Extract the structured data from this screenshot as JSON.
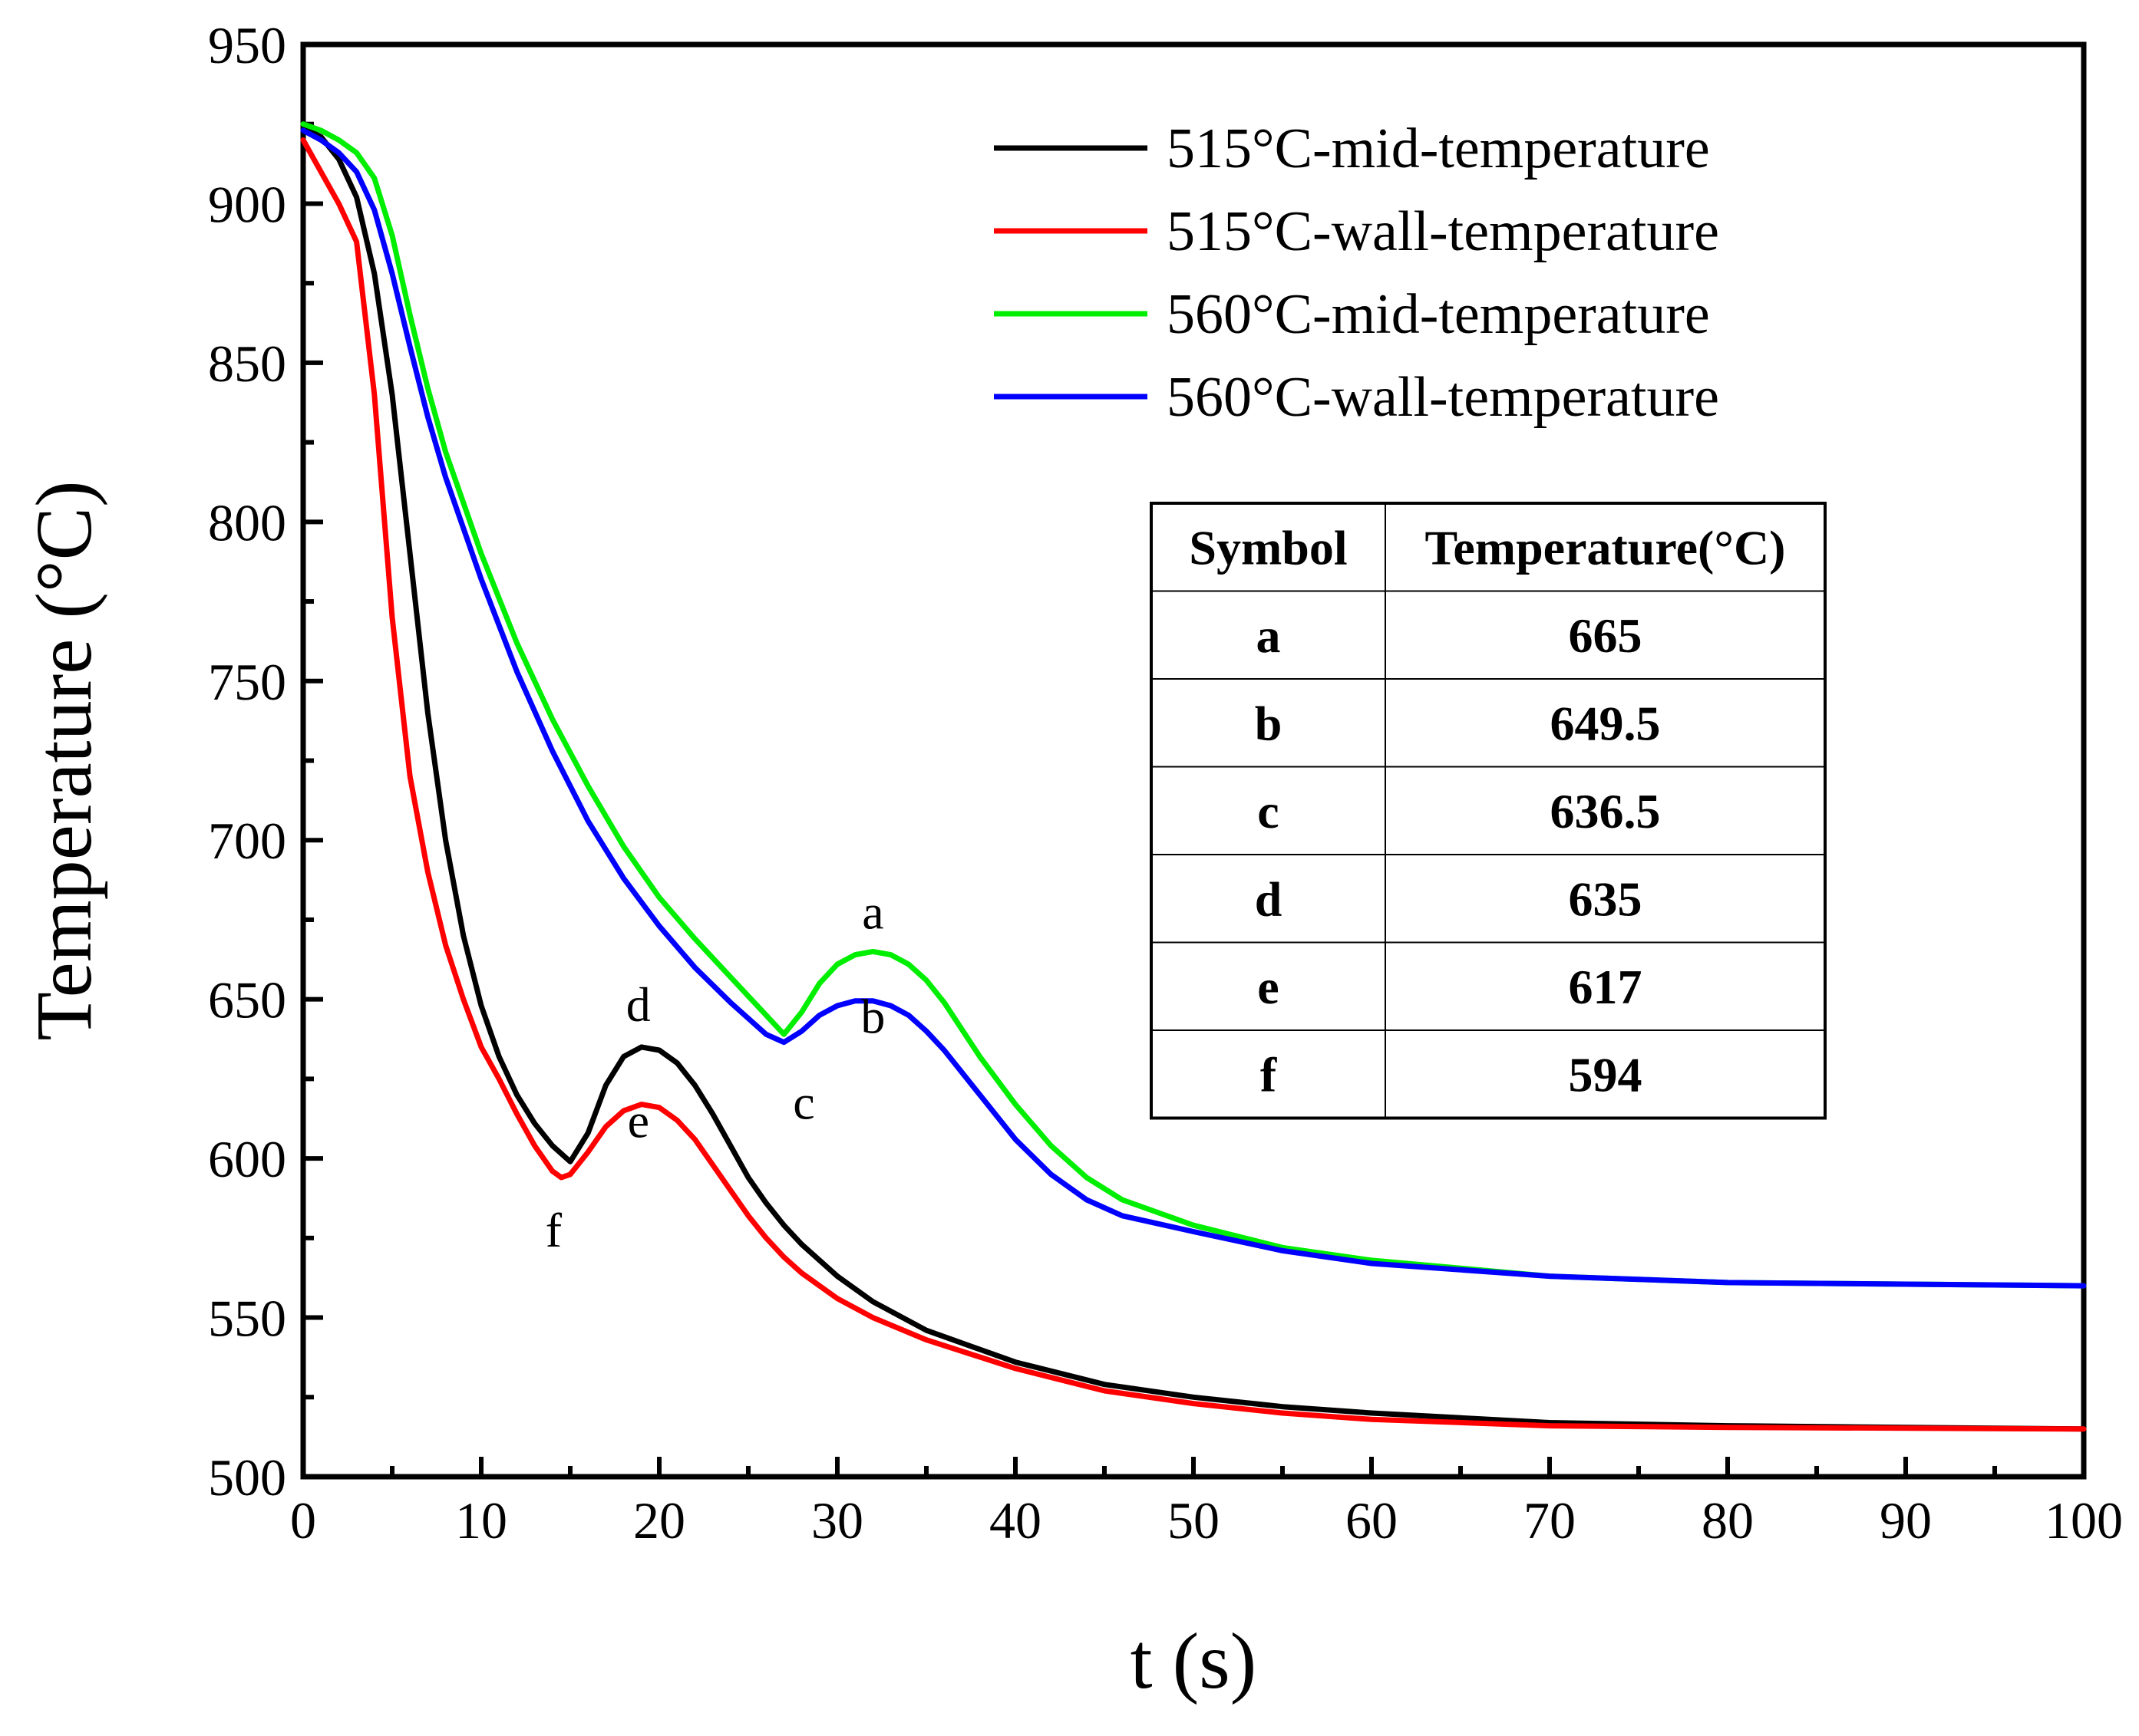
{
  "chart_data": {
    "type": "line",
    "xlabel": "t (s)",
    "ylabel": "Temperature (°C)",
    "xlim": [
      0,
      100
    ],
    "ylim": [
      500,
      950
    ],
    "xticks": [
      "0",
      "10",
      "20",
      "30",
      "40",
      "50",
      "60",
      "70",
      "80",
      "90",
      "100"
    ],
    "yticks": [
      "500",
      "550",
      "600",
      "650",
      "700",
      "750",
      "800",
      "850",
      "900",
      "950"
    ],
    "grid": false,
    "legend_position": "top-right",
    "series": [
      {
        "name": "515°C-mid-temperature",
        "color": "#000000",
        "points": [
          [
            0,
            924
          ],
          [
            1,
            921
          ],
          [
            2,
            914
          ],
          [
            3,
            902
          ],
          [
            4,
            878
          ],
          [
            5,
            840
          ],
          [
            6,
            790
          ],
          [
            7,
            740
          ],
          [
            8,
            700
          ],
          [
            9,
            670
          ],
          [
            10,
            648
          ],
          [
            11,
            632
          ],
          [
            12,
            620
          ],
          [
            13,
            611
          ],
          [
            14,
            604
          ],
          [
            15,
            599
          ],
          [
            16,
            608
          ],
          [
            17,
            623
          ],
          [
            18,
            632
          ],
          [
            19,
            635
          ],
          [
            20,
            634
          ],
          [
            21,
            630
          ],
          [
            22,
            623
          ],
          [
            23,
            614
          ],
          [
            24,
            604
          ],
          [
            25,
            594
          ],
          [
            26,
            586
          ],
          [
            27,
            579
          ],
          [
            28,
            573
          ],
          [
            29,
            568
          ],
          [
            30,
            563
          ],
          [
            32,
            555
          ],
          [
            35,
            546
          ],
          [
            40,
            536
          ],
          [
            45,
            529
          ],
          [
            50,
            525
          ],
          [
            55,
            522
          ],
          [
            60,
            520
          ],
          [
            70,
            517
          ],
          [
            80,
            516
          ],
          [
            90,
            515.5
          ],
          [
            100,
            515
          ]
        ]
      },
      {
        "name": "515°C-wall-temperature",
        "color": "#ff0000",
        "points": [
          [
            0,
            920
          ],
          [
            1,
            910
          ],
          [
            2,
            900
          ],
          [
            3,
            888
          ],
          [
            4,
            840
          ],
          [
            5,
            770
          ],
          [
            6,
            720
          ],
          [
            7,
            690
          ],
          [
            8,
            667
          ],
          [
            9,
            650
          ],
          [
            10,
            635
          ],
          [
            11,
            625
          ],
          [
            12,
            614
          ],
          [
            13,
            604
          ],
          [
            14,
            596
          ],
          [
            14.5,
            594
          ],
          [
            15,
            595
          ],
          [
            16,
            602
          ],
          [
            17,
            610
          ],
          [
            18,
            615
          ],
          [
            19,
            617
          ],
          [
            20,
            616
          ],
          [
            21,
            612
          ],
          [
            22,
            606
          ],
          [
            23,
            598
          ],
          [
            24,
            590
          ],
          [
            25,
            582
          ],
          [
            26,
            575
          ],
          [
            27,
            569
          ],
          [
            28,
            564
          ],
          [
            29,
            560
          ],
          [
            30,
            556
          ],
          [
            32,
            550
          ],
          [
            35,
            543
          ],
          [
            40,
            534
          ],
          [
            45,
            527
          ],
          [
            50,
            523
          ],
          [
            55,
            520
          ],
          [
            60,
            518
          ],
          [
            70,
            516
          ],
          [
            80,
            515.5
          ],
          [
            100,
            515
          ]
        ]
      },
      {
        "name": "560°C-mid-temperature",
        "color": "#00ee00",
        "points": [
          [
            0,
            925
          ],
          [
            1,
            923
          ],
          [
            2,
            920
          ],
          [
            3,
            916
          ],
          [
            4,
            908
          ],
          [
            5,
            890
          ],
          [
            6,
            865
          ],
          [
            7,
            842
          ],
          [
            8,
            822
          ],
          [
            10,
            790
          ],
          [
            12,
            762
          ],
          [
            14,
            738
          ],
          [
            16,
            717
          ],
          [
            18,
            698
          ],
          [
            20,
            682
          ],
          [
            22,
            669
          ],
          [
            24,
            657
          ],
          [
            26,
            645
          ],
          [
            27,
            639
          ],
          [
            28,
            646
          ],
          [
            29,
            655
          ],
          [
            30,
            661
          ],
          [
            31,
            664
          ],
          [
            32,
            665
          ],
          [
            33,
            664
          ],
          [
            34,
            661
          ],
          [
            35,
            656
          ],
          [
            36,
            649
          ],
          [
            38,
            632
          ],
          [
            40,
            617
          ],
          [
            42,
            604
          ],
          [
            44,
            594
          ],
          [
            46,
            587
          ],
          [
            50,
            579
          ],
          [
            55,
            572
          ],
          [
            60,
            568
          ],
          [
            70,
            563
          ],
          [
            80,
            561
          ],
          [
            90,
            560.5
          ],
          [
            100,
            560
          ]
        ]
      },
      {
        "name": "560°C-wall-temperature",
        "color": "#0000ff",
        "points": [
          [
            0,
            923
          ],
          [
            1,
            920
          ],
          [
            2,
            916
          ],
          [
            3,
            910
          ],
          [
            4,
            898
          ],
          [
            5,
            878
          ],
          [
            6,
            855
          ],
          [
            7,
            833
          ],
          [
            8,
            814
          ],
          [
            10,
            782
          ],
          [
            12,
            753
          ],
          [
            14,
            728
          ],
          [
            16,
            706
          ],
          [
            18,
            688
          ],
          [
            20,
            673
          ],
          [
            22,
            660
          ],
          [
            24,
            649
          ],
          [
            26,
            639
          ],
          [
            27,
            636.5
          ],
          [
            28,
            640
          ],
          [
            29,
            645
          ],
          [
            30,
            648
          ],
          [
            31,
            649.5
          ],
          [
            32,
            649.5
          ],
          [
            33,
            648
          ],
          [
            34,
            645
          ],
          [
            35,
            640
          ],
          [
            36,
            634
          ],
          [
            38,
            620
          ],
          [
            40,
            606
          ],
          [
            42,
            595
          ],
          [
            44,
            587
          ],
          [
            46,
            582
          ],
          [
            50,
            577
          ],
          [
            55,
            571
          ],
          [
            60,
            567
          ],
          [
            70,
            563
          ],
          [
            80,
            561
          ],
          [
            90,
            560.5
          ],
          [
            100,
            560
          ]
        ]
      }
    ],
    "annotations": [
      {
        "label": "a",
        "x": 32,
        "y": 665
      },
      {
        "label": "b",
        "x": 32,
        "y": 649.5
      },
      {
        "label": "c",
        "x": 27,
        "y": 636.5
      },
      {
        "label": "d",
        "x": 19,
        "y": 635
      },
      {
        "label": "e",
        "x": 19,
        "y": 617
      },
      {
        "label": "f",
        "x": 14.5,
        "y": 594
      }
    ],
    "table": {
      "headers": [
        "Symbol",
        "Temperature(°C)"
      ],
      "rows": [
        [
          "a",
          "665"
        ],
        [
          "b",
          "649.5"
        ],
        [
          "c",
          "636.5"
        ],
        [
          "d",
          "635"
        ],
        [
          "e",
          "617"
        ],
        [
          "f",
          "594"
        ]
      ]
    }
  }
}
